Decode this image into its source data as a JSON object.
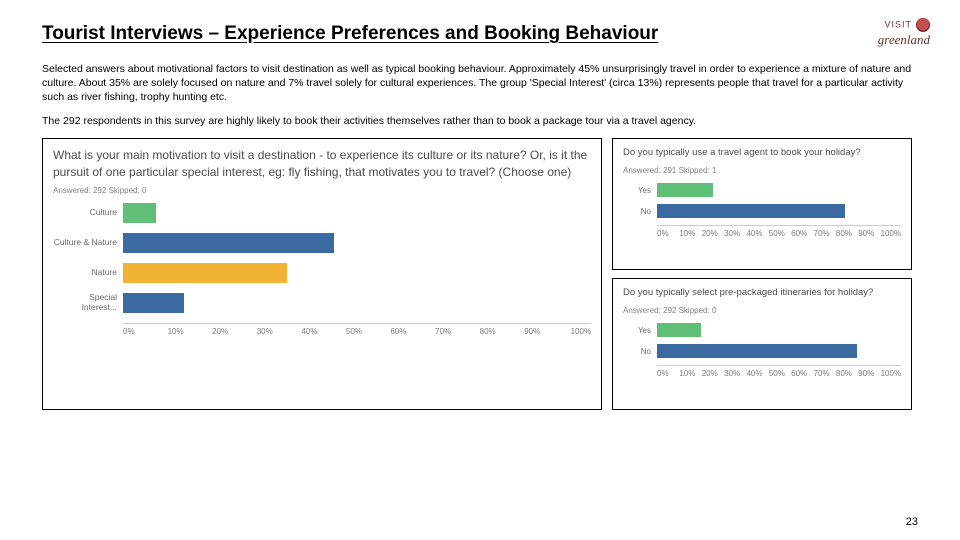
{
  "page_number": "23",
  "brand": {
    "top": "VISIT",
    "bottom": "greenland"
  },
  "title": "Tourist Interviews – Experience Preferences and Booking Behaviour",
  "paragraphs": [
    "Selected answers about motivational factors to visit destination as well as typical booking behaviour. Approximately 45% unsurprisingly travel in order to experience a mixture of nature and culture. About 35% are solely focused on nature and 7% travel solely for cultural experiences. The group 'Special Interest' (circa 13%) represents people that travel for a particular activity such as river fishing, trophy hunting etc.",
    "The 292 respondents in this survey are highly likely to book their activities themselves rather than to book a package tour via a travel agency."
  ],
  "chart_left": {
    "type": "bar",
    "question": "What is your main motivation to visit a destination - to experience its culture or its nature? Or, is it the pursuit of one particular special interest, eg: fly fishing, that motivates you to travel? (Choose one)",
    "meta": "Answered: 292    Skipped: 0",
    "categories": [
      "Culture",
      "Culture & Nature",
      "Nature",
      "Special Interest..."
    ],
    "values_pct": [
      7,
      45,
      35,
      13
    ],
    "bar_colors": [
      "#5fbf77",
      "#3b6aa0",
      "#f2b233",
      "#3b6aa0"
    ],
    "xmax": 100,
    "xtick_step": 10,
    "xticks": [
      "0%",
      "10%",
      "20%",
      "30%",
      "40%",
      "50%",
      "60%",
      "70%",
      "80%",
      "90%",
      "100%"
    ],
    "background_color": "#ffffff",
    "label_fontsize": 8.5,
    "question_fontsize": 12
  },
  "chart_right_top": {
    "type": "bar",
    "question": "Do you typically use a travel agent to book your holiday?",
    "meta": "Answered: 291    Skipped: 1",
    "categories": [
      "Yes",
      "No"
    ],
    "values_pct": [
      23,
      77
    ],
    "bar_colors": [
      "#5fbf77",
      "#3b6aa0"
    ],
    "xmax": 100,
    "xtick_step": 10,
    "xticks": [
      "0%",
      "10%",
      "20%",
      "30%",
      "40%",
      "50%",
      "60%",
      "70%",
      "80%",
      "90%",
      "100%"
    ],
    "background_color": "#ffffff",
    "question_fontsize": 9.5
  },
  "chart_right_bottom": {
    "type": "bar",
    "question": "Do you typically select pre-packaged itineraries for holiday?",
    "meta": "Answered: 292    Skipped: 0",
    "categories": [
      "Yes",
      "No"
    ],
    "values_pct": [
      18,
      82
    ],
    "bar_colors": [
      "#5fbf77",
      "#3b6aa0"
    ],
    "xmax": 100,
    "xtick_step": 10,
    "xticks": [
      "0%",
      "10%",
      "20%",
      "30%",
      "40%",
      "50%",
      "60%",
      "70%",
      "80%",
      "90%",
      "100%"
    ],
    "background_color": "#ffffff",
    "question_fontsize": 9.5
  }
}
